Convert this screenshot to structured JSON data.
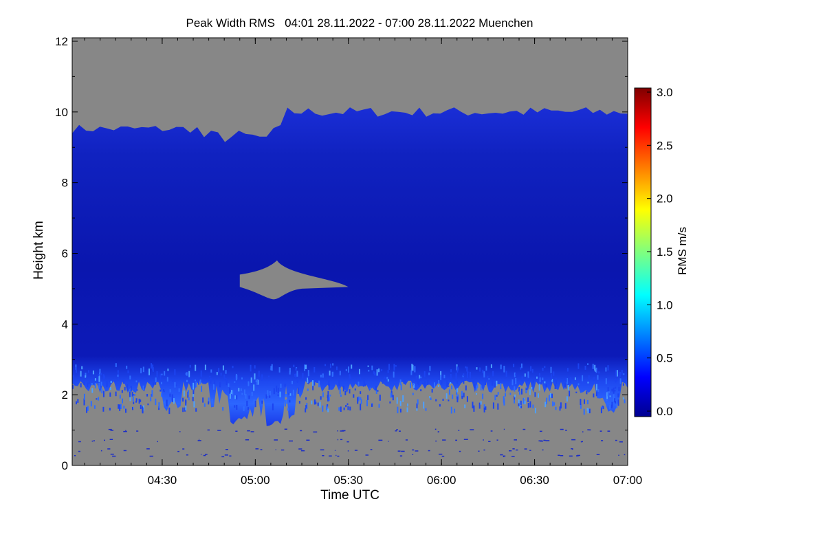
{
  "chart_data": {
    "type": "heatmap",
    "title": "Peak Width RMS   04:01 28.11.2022 - 07:00 28.11.2022 Muenchen",
    "xlabel": "Time UTC",
    "ylabel": "Height km",
    "x_range": [
      "04:01",
      "07:00"
    ],
    "x_ticks": [
      {
        "label": "04:30",
        "minutes": 270
      },
      {
        "label": "05:00",
        "minutes": 300
      },
      {
        "label": "05:30",
        "minutes": 330
      },
      {
        "label": "06:00",
        "minutes": 360
      },
      {
        "label": "06:30",
        "minutes": 390
      },
      {
        "label": "07:00",
        "minutes": 420
      }
    ],
    "ylim": [
      0,
      12
    ],
    "y_ticks": [
      "0",
      "2",
      "4",
      "6",
      "8",
      "10",
      "12"
    ],
    "colorbar": {
      "label": "RMS m/s",
      "range": [
        0.0,
        3.0
      ],
      "ticks": [
        "0.0",
        "0.5",
        "1.0",
        "1.5",
        "2.0",
        "2.5",
        "3.0"
      ],
      "colormap": "jet"
    },
    "colors": {
      "no_data": "#878787",
      "field_dark": "#0a14b0",
      "field_mid": "#1530d8",
      "field_light": "#2a60ff"
    },
    "regions": [
      {
        "name": "upper-no-data",
        "height_km": [
          9.6,
          12
        ]
      },
      {
        "name": "echo-field",
        "height_km": [
          2.0,
          9.6
        ],
        "rms_typical": 0.1
      },
      {
        "name": "boundary-layer-band",
        "height_km": [
          1.2,
          3.0
        ],
        "rms_typical": 0.35
      },
      {
        "name": "lower-no-data",
        "height_km": [
          0,
          2.0
        ]
      },
      {
        "name": "gap-mid-level",
        "time": [
          "04:55",
          "05:30"
        ],
        "height_km": [
          4.7,
          5.8
        ]
      }
    ]
  }
}
